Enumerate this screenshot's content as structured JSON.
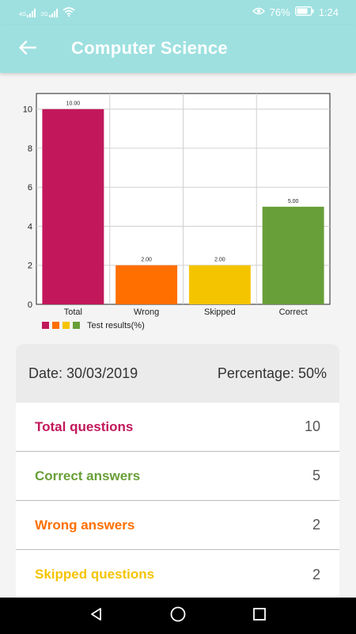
{
  "status_bar": {
    "net1": "4G",
    "net2": "2G",
    "battery": "76%",
    "time": "1:24",
    "icons": [
      "signal-icon",
      "wifi-icon",
      "eye-icon",
      "battery-icon"
    ]
  },
  "app_bar": {
    "title": "Computer Science",
    "back_icon": "arrow-left-icon"
  },
  "colors": {
    "accent": "#9ee0e0",
    "total": "#c2185b",
    "wrong": "#ff6f00",
    "skipped": "#f5c400",
    "correct": "#689f38"
  },
  "chart_data": {
    "type": "bar",
    "categories": [
      "Total",
      "Wrong",
      "Skipped",
      "Correct"
    ],
    "values": [
      10,
      2,
      2,
      5
    ],
    "value_labels": [
      "10.00",
      "2.00",
      "2.00",
      "5.00"
    ],
    "colors": [
      "#c2185b",
      "#ff6f00",
      "#f5c400",
      "#689f38"
    ],
    "ylim": [
      0,
      10.8
    ],
    "yticks": [
      0,
      2,
      4,
      6,
      8,
      10
    ],
    "legend": "Test results(%)",
    "legend_position": "bottom-left",
    "grid": true
  },
  "summary": {
    "date_text": "Date: 30/03/2019",
    "percentage_text": "Percentage: 50%"
  },
  "stats": [
    {
      "label": "Total questions",
      "value": "10",
      "color": "#c2185b"
    },
    {
      "label": "Correct answers",
      "value": "5",
      "color": "#689f38"
    },
    {
      "label": "Wrong answers",
      "value": "2",
      "color": "#ff6f00"
    },
    {
      "label": "Skipped questions",
      "value": "2",
      "color": "#f5c400"
    }
  ],
  "nav_bar": {
    "icons": [
      "back-triangle-icon",
      "home-circle-icon",
      "recents-square-icon"
    ]
  }
}
